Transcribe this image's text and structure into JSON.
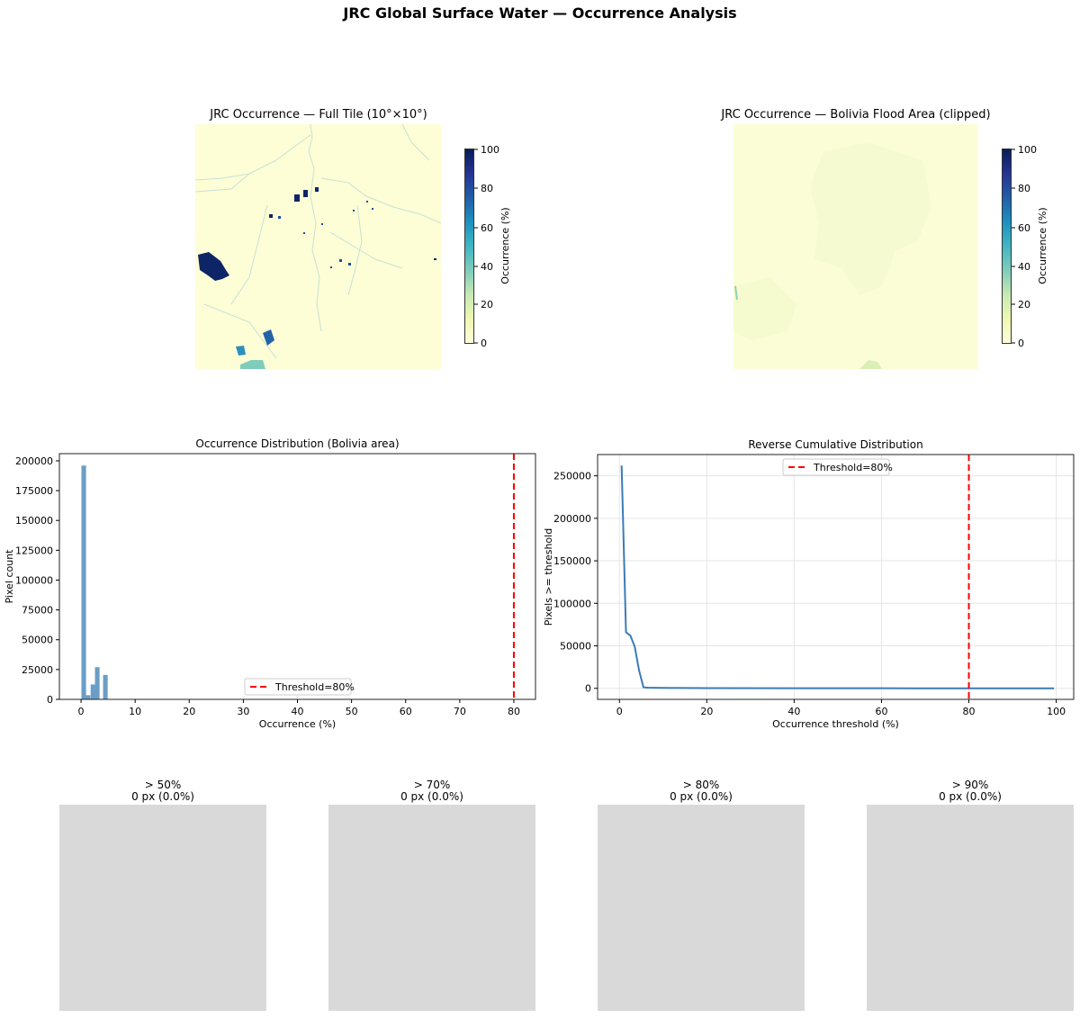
{
  "figure": {
    "suptitle": "JRC Global Surface Water — Occurrence Analysis"
  },
  "maps": [
    {
      "title": "JRC Occurrence — Full Tile (10°×10°)",
      "colorbar_label": "Occurrence (%)",
      "colorbar_ticks": [
        "0",
        "20",
        "40",
        "60",
        "80",
        "100"
      ],
      "colormap": [
        "#ffffd9",
        "#edf8b1",
        "#c7e9b4",
        "#7fcdbb",
        "#41b6c4",
        "#1d91c0",
        "#225ea8",
        "#253494",
        "#081d58"
      ]
    },
    {
      "title": "JRC Occurrence — Bolivia Flood Area (clipped)",
      "colorbar_label": "Occurrence (%)",
      "colorbar_ticks": [
        "0",
        "20",
        "40",
        "60",
        "80",
        "100"
      ],
      "colormap": [
        "#ffffd9",
        "#edf8b1",
        "#c7e9b4",
        "#7fcdbb",
        "#41b6c4",
        "#1d91c0",
        "#225ea8",
        "#253494",
        "#081d58"
      ]
    }
  ],
  "chart_data": [
    {
      "type": "bar",
      "title": "Occurrence Distribution (Bolivia area)",
      "xlabel": "Occurrence (%)",
      "ylabel": "Pixel count",
      "xlim": [
        -4,
        84
      ],
      "ylim": [
        0,
        206000
      ],
      "xticks": [
        0,
        10,
        20,
        30,
        40,
        50,
        60,
        70,
        80
      ],
      "yticks": [
        0,
        25000,
        50000,
        75000,
        100000,
        125000,
        150000,
        175000,
        200000
      ],
      "bar_color": "#6a9ec6",
      "bars": [
        {
          "x": 0.5,
          "width": 0.85,
          "value": 196000
        },
        {
          "x": 1.3,
          "width": 0.85,
          "value": 3500
        },
        {
          "x": 2.2,
          "width": 0.85,
          "value": 12500
        },
        {
          "x": 3.0,
          "width": 0.85,
          "value": 27000
        },
        {
          "x": 4.5,
          "width": 0.85,
          "value": 20500
        }
      ],
      "threshold": {
        "x": 80,
        "color": "#ff0000",
        "label": "Threshold=80%"
      },
      "legend": {
        "position": "lower center",
        "entries": [
          "Threshold=80%"
        ]
      },
      "grid": false
    },
    {
      "type": "line",
      "title": "Reverse Cumulative Distribution",
      "xlabel": "Occurrence threshold (%)",
      "ylabel": "Pixels >= threshold",
      "xlim": [
        -5,
        104
      ],
      "ylim": [
        -13000,
        275000
      ],
      "xticks": [
        0,
        20,
        40,
        60,
        80,
        100
      ],
      "yticks": [
        0,
        50000,
        100000,
        150000,
        200000,
        250000
      ],
      "line_color": "#3a7bb8",
      "x": [
        0.5,
        1.5,
        2.5,
        3.5,
        4.5,
        5.5,
        6.5,
        10,
        20,
        40,
        60,
        80,
        99.5
      ],
      "y": [
        262000,
        66000,
        62000,
        49000,
        21000,
        1200,
        800,
        500,
        200,
        100,
        50,
        0,
        0
      ],
      "threshold": {
        "x": 80,
        "color": "#ff0000",
        "label": "Threshold=80%"
      },
      "legend": {
        "position": "upper center",
        "entries": [
          "Threshold=80%"
        ]
      },
      "grid": true
    }
  ],
  "threshold_panels": [
    {
      "title": "> 50%",
      "subtitle": "0 px (0.0%)"
    },
    {
      "title": "> 70%",
      "subtitle": "0 px (0.0%)"
    },
    {
      "title": "> 80%",
      "subtitle": "0 px (0.0%)"
    },
    {
      "title": "> 90%",
      "subtitle": "0 px (0.0%)"
    }
  ]
}
